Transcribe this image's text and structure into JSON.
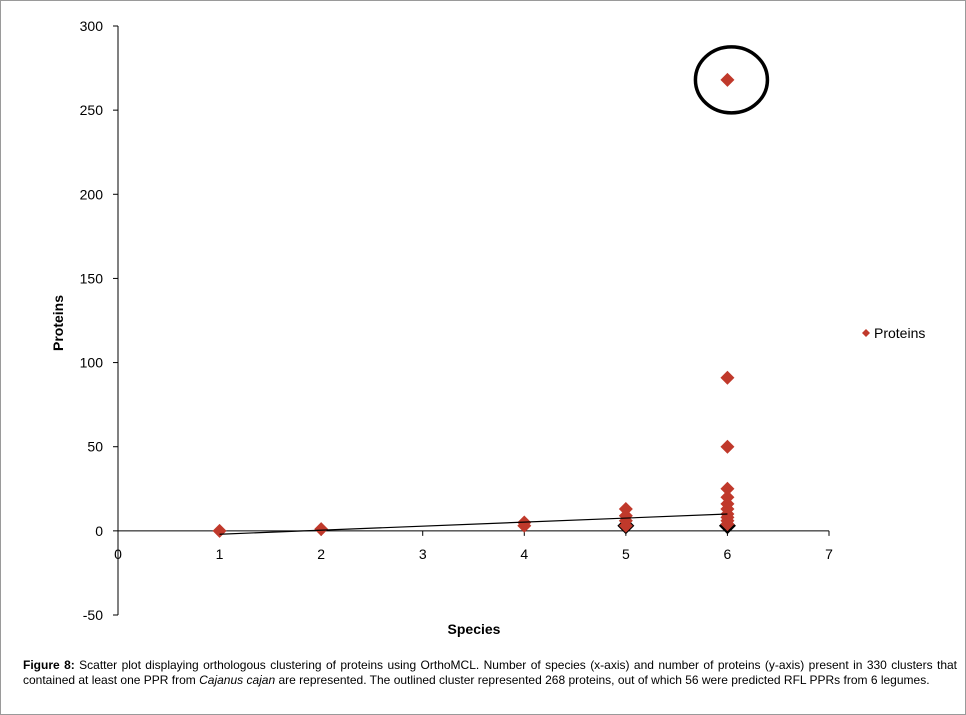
{
  "chart_data": {
    "type": "scatter",
    "xlabel": "Species",
    "ylabel": "Proteins",
    "xlim": [
      0,
      7
    ],
    "ylim": [
      -50,
      300
    ],
    "xticks": [
      0,
      1,
      2,
      3,
      4,
      5,
      6,
      7
    ],
    "yticks": [
      -50,
      0,
      50,
      100,
      150,
      200,
      250,
      300
    ],
    "grid": false,
    "legend_position": "right",
    "series": [
      {
        "name": "Proteins",
        "color": "#c0392b",
        "marker": "diamond",
        "points": [
          {
            "x": 1,
            "y": 0
          },
          {
            "x": 2,
            "y": 1
          },
          {
            "x": 4,
            "y": 3
          },
          {
            "x": 4,
            "y": 5
          },
          {
            "x": 5,
            "y": 3
          },
          {
            "x": 5,
            "y": 6
          },
          {
            "x": 5,
            "y": 9
          },
          {
            "x": 5,
            "y": 13
          },
          {
            "x": 6,
            "y": 268
          },
          {
            "x": 6,
            "y": 91
          },
          {
            "x": 6,
            "y": 50
          },
          {
            "x": 6,
            "y": 25
          },
          {
            "x": 6,
            "y": 20
          },
          {
            "x": 6,
            "y": 16
          },
          {
            "x": 6,
            "y": 13
          },
          {
            "x": 6,
            "y": 10
          },
          {
            "x": 6,
            "y": 8
          },
          {
            "x": 6,
            "y": 6
          },
          {
            "x": 6,
            "y": 4
          }
        ]
      }
    ],
    "trendline": {
      "type": "linear",
      "color": "#000000",
      "from": {
        "x": 1,
        "y": -2
      },
      "to": {
        "x": 6,
        "y": 10
      }
    },
    "outlined_markers": [
      {
        "x": 5,
        "y": 3
      },
      {
        "x": 6,
        "y": 3
      }
    ],
    "annotations": [
      {
        "type": "circle",
        "around": {
          "x": 6,
          "y": 268
        },
        "color": "#000000"
      }
    ]
  },
  "caption": {
    "label": "Figure 8:",
    "text_before": " Scatter plot displaying orthologous clustering of proteins using OrthoMCL. Number of species (x-axis) and number of proteins (y-axis) present in 330 clusters that contained at least one PPR from ",
    "italic": "Cajanus cajan",
    "text_after": " are represented. The outlined cluster represented 268 proteins, out of which 56 were predicted RFL PPRs from 6 legumes."
  }
}
